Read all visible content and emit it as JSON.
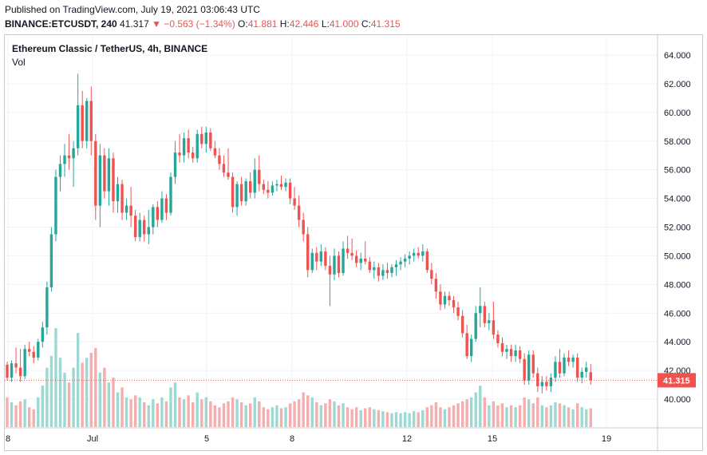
{
  "header": {
    "published": "Published on TradingView.com, July 19, 2021 03:06:43 UTC",
    "symbol": "BINANCE:ETCUSDT, 240",
    "last": "41.317",
    "change": "▼ −0.563 (−1.34%)",
    "o_label": "O:",
    "o_val": "41.881",
    "h_label": "H:",
    "h_val": "42.446",
    "l_label": "L:",
    "l_val": "41.000",
    "c_label": "C:",
    "c_val": "41.315"
  },
  "legend": {
    "title": "Ethereum Classic / TetherUS, 4h, BINANCE",
    "vol": "Vol"
  },
  "colors": {
    "up": "#26a69a",
    "down": "#ef5350",
    "up_vol": "#9ed8d3",
    "down_vol": "#f4aeae",
    "grid": "#f0f3fa"
  },
  "chart_data": {
    "type": "candlestick",
    "title": "Ethereum Classic / TetherUS, 4h, BINANCE",
    "y_ticks": [
      "40.000",
      "42.000",
      "44.000",
      "46.000",
      "48.000",
      "50.000",
      "52.000",
      "54.000",
      "56.000",
      "58.000",
      "60.000",
      "62.000",
      "64.000"
    ],
    "x_ticks": [
      "8",
      "Jul",
      "5",
      "8",
      "12",
      "15",
      "19"
    ],
    "last_price_label": "41.315",
    "ylim": [
      39.0,
      65.0
    ],
    "volume_series": "Vol",
    "candles": [
      {
        "o": 42.4,
        "h": 42.6,
        "l": 41.3,
        "c": 41.5,
        "v": 0.3
      },
      {
        "o": 41.5,
        "h": 42.7,
        "l": 41.2,
        "c": 42.5,
        "v": 0.25
      },
      {
        "o": 42.5,
        "h": 43.6,
        "l": 41.8,
        "c": 42.2,
        "v": 0.22
      },
      {
        "o": 42.2,
        "h": 43.5,
        "l": 41.2,
        "c": 41.6,
        "v": 0.26
      },
      {
        "o": 41.6,
        "h": 43.8,
        "l": 41.4,
        "c": 43.5,
        "v": 0.28
      },
      {
        "o": 43.5,
        "h": 44.0,
        "l": 43.0,
        "c": 43.3,
        "v": 0.2
      },
      {
        "o": 43.3,
        "h": 43.7,
        "l": 42.5,
        "c": 42.9,
        "v": 0.18
      },
      {
        "o": 42.9,
        "h": 44.2,
        "l": 42.7,
        "c": 44.0,
        "v": 0.3
      },
      {
        "o": 44.0,
        "h": 45.4,
        "l": 43.6,
        "c": 45.0,
        "v": 0.42
      },
      {
        "o": 45.0,
        "h": 48.2,
        "l": 44.5,
        "c": 47.8,
        "v": 0.6
      },
      {
        "o": 47.8,
        "h": 52.0,
        "l": 47.5,
        "c": 51.5,
        "v": 0.72
      },
      {
        "o": 51.5,
        "h": 56.0,
        "l": 51.0,
        "c": 55.5,
        "v": 1.0
      },
      {
        "o": 55.5,
        "h": 57.0,
        "l": 54.5,
        "c": 56.4,
        "v": 0.7
      },
      {
        "o": 56.4,
        "h": 57.8,
        "l": 55.5,
        "c": 57.0,
        "v": 0.55
      },
      {
        "o": 57.0,
        "h": 58.5,
        "l": 56.0,
        "c": 56.8,
        "v": 0.45
      },
      {
        "o": 56.8,
        "h": 58.0,
        "l": 54.8,
        "c": 57.5,
        "v": 0.6
      },
      {
        "o": 57.5,
        "h": 62.7,
        "l": 57.0,
        "c": 60.5,
        "v": 0.95
      },
      {
        "o": 60.5,
        "h": 61.5,
        "l": 57.5,
        "c": 58.0,
        "v": 0.65
      },
      {
        "o": 58.0,
        "h": 61.0,
        "l": 57.5,
        "c": 60.8,
        "v": 0.7
      },
      {
        "o": 60.8,
        "h": 61.8,
        "l": 57.0,
        "c": 58.0,
        "v": 0.75
      },
      {
        "o": 58.0,
        "h": 58.5,
        "l": 52.5,
        "c": 53.5,
        "v": 0.8
      },
      {
        "o": 53.5,
        "h": 57.8,
        "l": 52.0,
        "c": 57.0,
        "v": 0.55
      },
      {
        "o": 57.0,
        "h": 57.5,
        "l": 54.0,
        "c": 54.5,
        "v": 0.6
      },
      {
        "o": 54.5,
        "h": 57.5,
        "l": 53.5,
        "c": 56.8,
        "v": 0.45
      },
      {
        "o": 56.8,
        "h": 57.2,
        "l": 53.0,
        "c": 53.8,
        "v": 0.5
      },
      {
        "o": 53.8,
        "h": 55.5,
        "l": 53.0,
        "c": 55.0,
        "v": 0.35
      },
      {
        "o": 55.0,
        "h": 55.3,
        "l": 52.5,
        "c": 53.0,
        "v": 0.4
      },
      {
        "o": 53.0,
        "h": 54.0,
        "l": 52.5,
        "c": 53.5,
        "v": 0.3
      },
      {
        "o": 53.5,
        "h": 54.8,
        "l": 52.0,
        "c": 52.8,
        "v": 0.28
      },
      {
        "o": 52.8,
        "h": 53.2,
        "l": 51.0,
        "c": 51.3,
        "v": 0.32
      },
      {
        "o": 51.3,
        "h": 53.0,
        "l": 51.0,
        "c": 52.5,
        "v": 0.3
      },
      {
        "o": 52.5,
        "h": 52.8,
        "l": 51.0,
        "c": 51.5,
        "v": 0.25
      },
      {
        "o": 51.5,
        "h": 53.2,
        "l": 50.8,
        "c": 52.0,
        "v": 0.22
      },
      {
        "o": 52.0,
        "h": 53.6,
        "l": 51.5,
        "c": 53.4,
        "v": 0.28
      },
      {
        "o": 53.4,
        "h": 53.8,
        "l": 52.0,
        "c": 52.5,
        "v": 0.24
      },
      {
        "o": 52.5,
        "h": 54.5,
        "l": 52.3,
        "c": 54.0,
        "v": 0.3
      },
      {
        "o": 54.0,
        "h": 54.3,
        "l": 52.5,
        "c": 53.0,
        "v": 0.26
      },
      {
        "o": 53.0,
        "h": 55.8,
        "l": 52.8,
        "c": 55.5,
        "v": 0.4
      },
      {
        "o": 55.5,
        "h": 58.0,
        "l": 55.0,
        "c": 57.2,
        "v": 0.45
      },
      {
        "o": 57.2,
        "h": 58.5,
        "l": 56.5,
        "c": 57.0,
        "v": 0.3
      },
      {
        "o": 57.0,
        "h": 58.6,
        "l": 56.5,
        "c": 58.2,
        "v": 0.28
      },
      {
        "o": 58.2,
        "h": 58.8,
        "l": 56.8,
        "c": 57.2,
        "v": 0.32
      },
      {
        "o": 57.2,
        "h": 57.6,
        "l": 56.5,
        "c": 56.8,
        "v": 0.25
      },
      {
        "o": 56.8,
        "h": 58.8,
        "l": 56.5,
        "c": 58.5,
        "v": 0.35
      },
      {
        "o": 58.5,
        "h": 59.0,
        "l": 57.5,
        "c": 57.8,
        "v": 0.28
      },
      {
        "o": 57.8,
        "h": 59.0,
        "l": 57.2,
        "c": 58.6,
        "v": 0.3
      },
      {
        "o": 58.6,
        "h": 58.9,
        "l": 57.3,
        "c": 57.5,
        "v": 0.26
      },
      {
        "o": 57.5,
        "h": 58.0,
        "l": 56.8,
        "c": 57.0,
        "v": 0.22
      },
      {
        "o": 57.0,
        "h": 57.5,
        "l": 56.0,
        "c": 56.4,
        "v": 0.2
      },
      {
        "o": 56.4,
        "h": 57.0,
        "l": 55.5,
        "c": 55.8,
        "v": 0.24
      },
      {
        "o": 55.8,
        "h": 57.5,
        "l": 55.3,
        "c": 55.5,
        "v": 0.26
      },
      {
        "o": 55.5,
        "h": 55.8,
        "l": 53.0,
        "c": 53.4,
        "v": 0.3
      },
      {
        "o": 53.4,
        "h": 55.2,
        "l": 52.8,
        "c": 55.0,
        "v": 0.28
      },
      {
        "o": 55.0,
        "h": 55.5,
        "l": 53.5,
        "c": 53.8,
        "v": 0.25
      },
      {
        "o": 53.8,
        "h": 55.4,
        "l": 53.5,
        "c": 55.2,
        "v": 0.22
      },
      {
        "o": 55.2,
        "h": 55.8,
        "l": 54.0,
        "c": 54.4,
        "v": 0.24
      },
      {
        "o": 54.4,
        "h": 56.8,
        "l": 54.0,
        "c": 56.0,
        "v": 0.3
      },
      {
        "o": 56.0,
        "h": 57.0,
        "l": 54.5,
        "c": 55.0,
        "v": 0.26
      },
      {
        "o": 55.0,
        "h": 55.3,
        "l": 54.3,
        "c": 54.6,
        "v": 0.2
      },
      {
        "o": 54.6,
        "h": 55.2,
        "l": 54.0,
        "c": 54.4,
        "v": 0.18
      },
      {
        "o": 54.4,
        "h": 55.2,
        "l": 54.2,
        "c": 54.9,
        "v": 0.2
      },
      {
        "o": 54.9,
        "h": 55.3,
        "l": 54.5,
        "c": 55.0,
        "v": 0.22
      },
      {
        "o": 55.0,
        "h": 55.6,
        "l": 54.6,
        "c": 54.8,
        "v": 0.19
      },
      {
        "o": 54.8,
        "h": 55.4,
        "l": 54.5,
        "c": 55.1,
        "v": 0.2
      },
      {
        "o": 55.1,
        "h": 55.4,
        "l": 53.6,
        "c": 54.0,
        "v": 0.24
      },
      {
        "o": 54.0,
        "h": 54.8,
        "l": 53.2,
        "c": 53.5,
        "v": 0.26
      },
      {
        "o": 53.5,
        "h": 54.2,
        "l": 52.0,
        "c": 52.5,
        "v": 0.28
      },
      {
        "o": 52.5,
        "h": 53.0,
        "l": 51.0,
        "c": 51.5,
        "v": 0.35
      },
      {
        "o": 51.5,
        "h": 52.0,
        "l": 48.5,
        "c": 49.0,
        "v": 0.32
      },
      {
        "o": 49.0,
        "h": 50.5,
        "l": 48.8,
        "c": 50.2,
        "v": 0.3
      },
      {
        "o": 50.2,
        "h": 50.6,
        "l": 49.0,
        "c": 49.6,
        "v": 0.25
      },
      {
        "o": 49.6,
        "h": 50.8,
        "l": 49.3,
        "c": 50.3,
        "v": 0.22
      },
      {
        "o": 50.3,
        "h": 50.6,
        "l": 49.0,
        "c": 49.3,
        "v": 0.24
      },
      {
        "o": 49.3,
        "h": 50.0,
        "l": 46.5,
        "c": 48.7,
        "v": 0.28
      },
      {
        "o": 48.7,
        "h": 50.5,
        "l": 48.3,
        "c": 50.0,
        "v": 0.26
      },
      {
        "o": 50.0,
        "h": 50.3,
        "l": 48.5,
        "c": 48.8,
        "v": 0.22
      },
      {
        "o": 48.8,
        "h": 51.0,
        "l": 48.6,
        "c": 50.5,
        "v": 0.24
      },
      {
        "o": 50.5,
        "h": 51.4,
        "l": 49.8,
        "c": 50.2,
        "v": 0.2
      },
      {
        "o": 50.2,
        "h": 51.2,
        "l": 49.7,
        "c": 50.0,
        "v": 0.18
      },
      {
        "o": 50.0,
        "h": 50.4,
        "l": 49.2,
        "c": 49.5,
        "v": 0.2
      },
      {
        "o": 49.5,
        "h": 50.2,
        "l": 49.0,
        "c": 49.8,
        "v": 0.17
      },
      {
        "o": 49.8,
        "h": 51.0,
        "l": 49.4,
        "c": 49.6,
        "v": 0.19
      },
      {
        "o": 49.6,
        "h": 49.9,
        "l": 48.8,
        "c": 49.0,
        "v": 0.2
      },
      {
        "o": 49.0,
        "h": 49.6,
        "l": 48.4,
        "c": 49.2,
        "v": 0.18
      },
      {
        "o": 49.2,
        "h": 49.5,
        "l": 48.2,
        "c": 48.6,
        "v": 0.17
      },
      {
        "o": 48.6,
        "h": 49.4,
        "l": 48.3,
        "c": 49.0,
        "v": 0.16
      },
      {
        "o": 49.0,
        "h": 49.5,
        "l": 48.4,
        "c": 48.8,
        "v": 0.15
      },
      {
        "o": 48.8,
        "h": 49.4,
        "l": 48.5,
        "c": 49.2,
        "v": 0.14
      },
      {
        "o": 49.2,
        "h": 49.7,
        "l": 48.6,
        "c": 49.4,
        "v": 0.15
      },
      {
        "o": 49.4,
        "h": 49.9,
        "l": 49.0,
        "c": 49.6,
        "v": 0.14
      },
      {
        "o": 49.6,
        "h": 50.1,
        "l": 49.2,
        "c": 49.8,
        "v": 0.15
      },
      {
        "o": 49.8,
        "h": 50.3,
        "l": 49.4,
        "c": 50.0,
        "v": 0.14
      },
      {
        "o": 50.0,
        "h": 50.5,
        "l": 49.6,
        "c": 50.2,
        "v": 0.16
      },
      {
        "o": 50.2,
        "h": 50.6,
        "l": 49.8,
        "c": 50.0,
        "v": 0.15
      },
      {
        "o": 50.0,
        "h": 50.8,
        "l": 49.6,
        "c": 50.3,
        "v": 0.17
      },
      {
        "o": 50.3,
        "h": 50.5,
        "l": 48.8,
        "c": 49.0,
        "v": 0.2
      },
      {
        "o": 49.0,
        "h": 49.5,
        "l": 48.0,
        "c": 48.4,
        "v": 0.22
      },
      {
        "o": 48.4,
        "h": 48.8,
        "l": 47.0,
        "c": 47.5,
        "v": 0.25
      },
      {
        "o": 47.5,
        "h": 48.0,
        "l": 46.2,
        "c": 46.6,
        "v": 0.2
      },
      {
        "o": 46.6,
        "h": 47.5,
        "l": 46.3,
        "c": 47.2,
        "v": 0.18
      },
      {
        "o": 47.2,
        "h": 47.5,
        "l": 46.5,
        "c": 46.9,
        "v": 0.2
      },
      {
        "o": 46.9,
        "h": 47.2,
        "l": 46.0,
        "c": 46.4,
        "v": 0.22
      },
      {
        "o": 46.4,
        "h": 46.8,
        "l": 45.5,
        "c": 45.8,
        "v": 0.24
      },
      {
        "o": 45.8,
        "h": 46.2,
        "l": 44.3,
        "c": 44.6,
        "v": 0.26
      },
      {
        "o": 44.6,
        "h": 45.2,
        "l": 42.8,
        "c": 43.0,
        "v": 0.28
      },
      {
        "o": 43.0,
        "h": 44.5,
        "l": 42.6,
        "c": 44.2,
        "v": 0.3
      },
      {
        "o": 44.2,
        "h": 46.5,
        "l": 44.0,
        "c": 46.0,
        "v": 0.35
      },
      {
        "o": 46.0,
        "h": 47.8,
        "l": 45.0,
        "c": 46.5,
        "v": 0.42
      },
      {
        "o": 46.5,
        "h": 46.8,
        "l": 45.0,
        "c": 45.3,
        "v": 0.3
      },
      {
        "o": 45.3,
        "h": 46.0,
        "l": 44.8,
        "c": 45.5,
        "v": 0.22
      },
      {
        "o": 45.5,
        "h": 46.8,
        "l": 44.2,
        "c": 44.5,
        "v": 0.26
      },
      {
        "o": 44.5,
        "h": 44.8,
        "l": 43.6,
        "c": 43.9,
        "v": 0.22
      },
      {
        "o": 43.9,
        "h": 44.3,
        "l": 43.0,
        "c": 43.3,
        "v": 0.24
      },
      {
        "o": 43.3,
        "h": 43.8,
        "l": 42.8,
        "c": 43.5,
        "v": 0.2
      },
      {
        "o": 43.5,
        "h": 43.8,
        "l": 42.6,
        "c": 43.0,
        "v": 0.22
      },
      {
        "o": 43.0,
        "h": 43.8,
        "l": 42.6,
        "c": 43.4,
        "v": 0.2
      },
      {
        "o": 43.4,
        "h": 43.7,
        "l": 42.5,
        "c": 42.8,
        "v": 0.22
      },
      {
        "o": 42.8,
        "h": 43.2,
        "l": 41.0,
        "c": 41.3,
        "v": 0.3
      },
      {
        "o": 41.3,
        "h": 43.4,
        "l": 41.0,
        "c": 43.1,
        "v": 0.28
      },
      {
        "o": 43.1,
        "h": 43.4,
        "l": 41.5,
        "c": 41.8,
        "v": 0.24
      },
      {
        "o": 41.8,
        "h": 42.2,
        "l": 40.5,
        "c": 40.9,
        "v": 0.3
      },
      {
        "o": 40.9,
        "h": 41.6,
        "l": 40.4,
        "c": 41.2,
        "v": 0.22
      },
      {
        "o": 41.2,
        "h": 41.6,
        "l": 40.6,
        "c": 40.9,
        "v": 0.2
      },
      {
        "o": 40.9,
        "h": 41.8,
        "l": 40.5,
        "c": 41.5,
        "v": 0.22
      },
      {
        "o": 41.5,
        "h": 43.0,
        "l": 41.2,
        "c": 42.6,
        "v": 0.25
      },
      {
        "o": 42.6,
        "h": 43.5,
        "l": 41.5,
        "c": 41.8,
        "v": 0.24
      },
      {
        "o": 41.8,
        "h": 43.2,
        "l": 41.6,
        "c": 42.9,
        "v": 0.22
      },
      {
        "o": 42.9,
        "h": 43.4,
        "l": 42.3,
        "c": 42.6,
        "v": 0.2
      },
      {
        "o": 42.6,
        "h": 43.1,
        "l": 42.2,
        "c": 42.9,
        "v": 0.18
      },
      {
        "o": 42.9,
        "h": 43.2,
        "l": 41.2,
        "c": 41.5,
        "v": 0.24
      },
      {
        "o": 41.5,
        "h": 42.2,
        "l": 41.1,
        "c": 41.9,
        "v": 0.2
      },
      {
        "o": 41.9,
        "h": 42.6,
        "l": 41.5,
        "c": 42.2,
        "v": 0.18
      },
      {
        "o": 41.88,
        "h": 42.45,
        "l": 41.0,
        "c": 41.32,
        "v": 0.19
      }
    ]
  }
}
